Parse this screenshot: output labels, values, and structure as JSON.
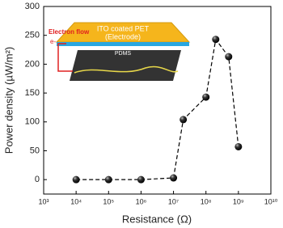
{
  "chart_data": {
    "type": "line",
    "log_x": true,
    "x_label": "Resistance (Ω)",
    "y_label": "Power density (µW/m²)",
    "x": [
      10000,
      100000,
      1000000,
      10000000,
      20000000,
      100000000,
      200000000,
      500000000,
      1000000000
    ],
    "series": [
      {
        "color": "#000000",
        "values": [
          0,
          0,
          0,
          3,
          104,
          143,
          243,
          213,
          57
        ]
      }
    ],
    "xlim": [
      1000,
      10000000000
    ],
    "xticks": [
      {
        "value": 1000,
        "label": "10³"
      },
      {
        "value": 10000,
        "label": "10⁴"
      },
      {
        "value": 100000,
        "label": "10⁵"
      },
      {
        "value": 1000000,
        "label": "10⁶"
      },
      {
        "value": 10000000,
        "label": "10⁷"
      },
      {
        "value": 100000000,
        "label": "10⁸"
      },
      {
        "value": 1000000000,
        "label": "10⁹"
      },
      {
        "value": 10000000000,
        "label": "10¹⁰"
      }
    ],
    "ylim": [
      -25,
      300
    ],
    "yticks": [
      0,
      50,
      100,
      150,
      200,
      250,
      300
    ],
    "annotations": [
      "ITO coated PET",
      "(Electrode)",
      "PDMS",
      "Electron flow",
      "e-"
    ]
  }
}
